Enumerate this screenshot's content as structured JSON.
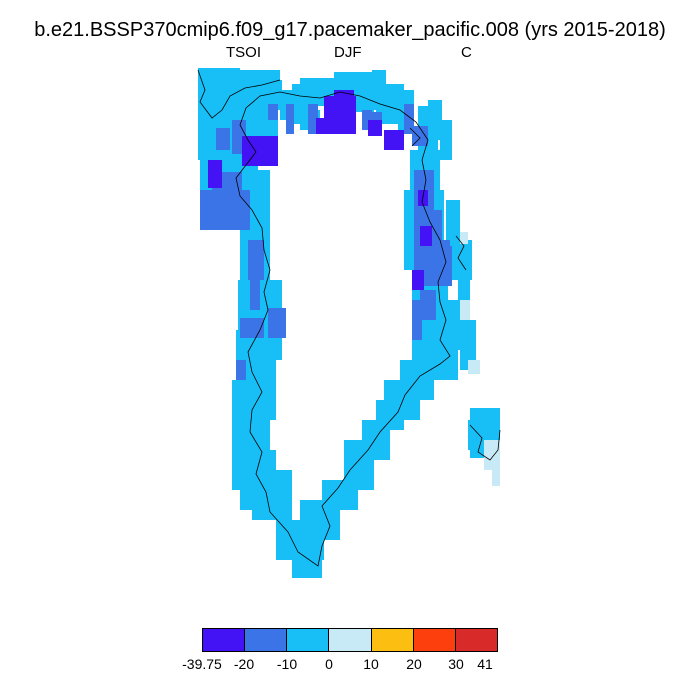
{
  "title": "b.e21.BSSP370cmip6.f09_g17.pacemaker_pacific.008 (yrs 2015-2018)",
  "subtitle_left": "TSOI",
  "subtitle_center": "DJF",
  "subtitle_right": "C",
  "colorbar": {
    "colors": [
      "#4312f5",
      "#3b74e6",
      "#18bff7",
      "#c8e9f6",
      "#fcbe10",
      "#fc3f0c",
      "#d92a2a"
    ],
    "tick_labels": [
      "-39.75",
      "-20",
      "-10",
      "0",
      "10",
      "20",
      "30",
      "41"
    ]
  },
  "map_colors": {
    "c1": "#4312f5",
    "c2": "#3b74e6",
    "c3": "#18bff7",
    "c4": "#c8e9f6"
  }
}
